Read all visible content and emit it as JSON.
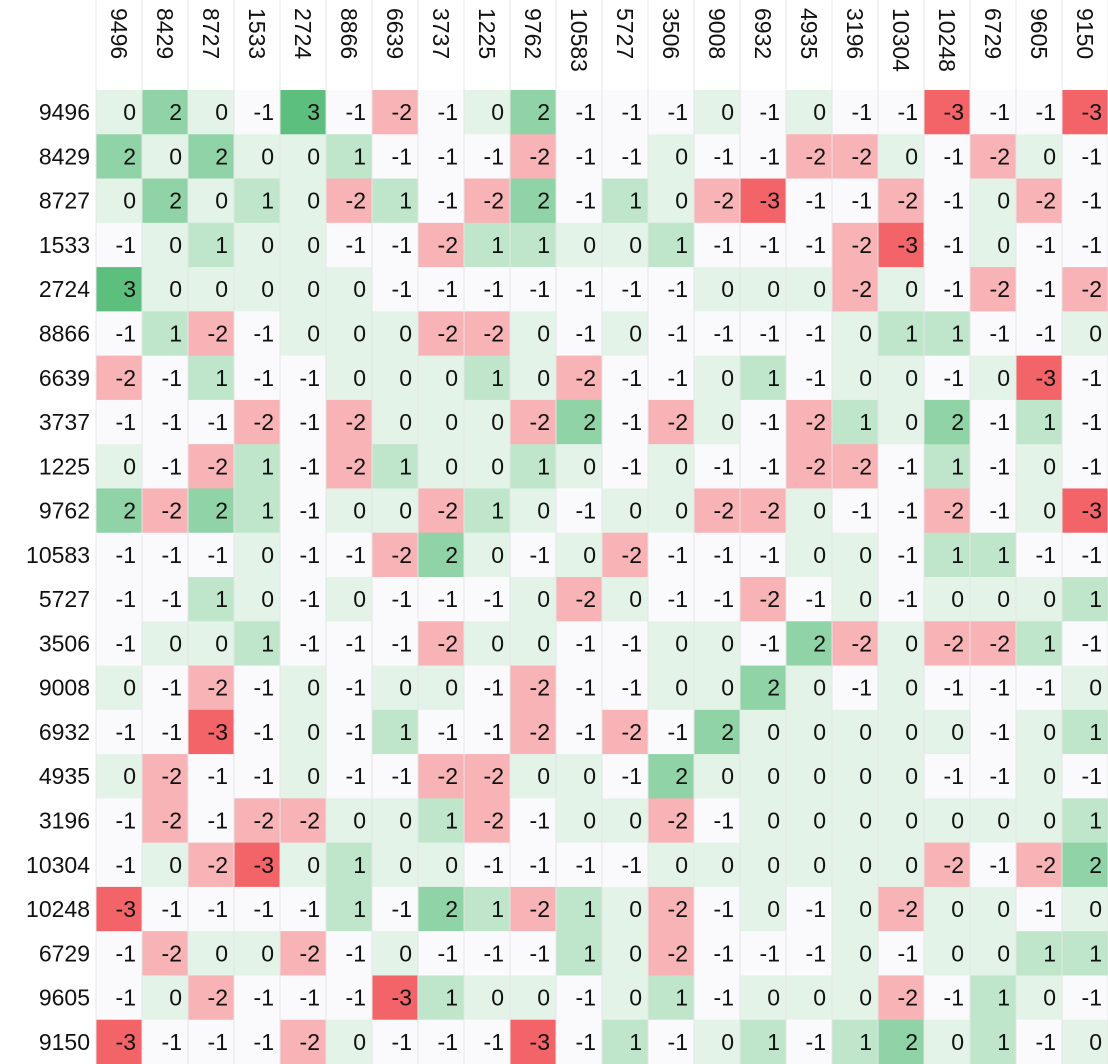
{
  "chart_data": {
    "type": "heatmap",
    "title": "",
    "xlabel": "",
    "ylabel": "",
    "labels": [
      "9496",
      "8429",
      "8727",
      "1533",
      "2724",
      "8866",
      "6639",
      "3737",
      "1225",
      "9762",
      "10583",
      "5727",
      "3506",
      "9008",
      "6932",
      "4935",
      "3196",
      "10304",
      "10248",
      "6729",
      "9605",
      "9150"
    ],
    "values": [
      [
        0,
        2,
        0,
        -1,
        3,
        -1,
        -2,
        -1,
        0,
        2,
        -1,
        -1,
        -1,
        0,
        -1,
        0,
        -1,
        -1,
        -3,
        -1,
        -1,
        -3
      ],
      [
        2,
        0,
        2,
        0,
        0,
        1,
        -1,
        -1,
        -1,
        -2,
        -1,
        -1,
        0,
        -1,
        -1,
        -2,
        -2,
        0,
        -1,
        -2,
        0,
        -1
      ],
      [
        0,
        2,
        0,
        1,
        0,
        -2,
        1,
        -1,
        -2,
        2,
        -1,
        1,
        0,
        -2,
        -3,
        -1,
        -1,
        -2,
        -1,
        0,
        -2,
        -1
      ],
      [
        -1,
        0,
        1,
        0,
        0,
        -1,
        -1,
        -2,
        1,
        1,
        0,
        0,
        1,
        -1,
        -1,
        -1,
        -2,
        -3,
        -1,
        0,
        -1,
        -1
      ],
      [
        3,
        0,
        0,
        0,
        0,
        0,
        -1,
        -1,
        -1,
        -1,
        -1,
        -1,
        -1,
        0,
        0,
        0,
        -2,
        0,
        -1,
        -2,
        -1,
        -2
      ],
      [
        -1,
        1,
        -2,
        -1,
        0,
        0,
        0,
        -2,
        -2,
        0,
        -1,
        0,
        -1,
        -1,
        -1,
        -1,
        0,
        1,
        1,
        -1,
        -1,
        0
      ],
      [
        -2,
        -1,
        1,
        -1,
        -1,
        0,
        0,
        0,
        1,
        0,
        -2,
        -1,
        -1,
        0,
        1,
        -1,
        0,
        0,
        -1,
        0,
        -3,
        -1
      ],
      [
        -1,
        -1,
        -1,
        -2,
        -1,
        -2,
        0,
        0,
        0,
        -2,
        2,
        -1,
        -2,
        0,
        -1,
        -2,
        1,
        0,
        2,
        -1,
        1,
        -1
      ],
      [
        0,
        -1,
        -2,
        1,
        -1,
        -2,
        1,
        0,
        0,
        1,
        0,
        -1,
        0,
        -1,
        -1,
        -2,
        -2,
        -1,
        1,
        -1,
        0,
        -1
      ],
      [
        2,
        -2,
        2,
        1,
        -1,
        0,
        0,
        -2,
        1,
        0,
        -1,
        0,
        0,
        -2,
        -2,
        0,
        -1,
        -1,
        -2,
        -1,
        0,
        -3
      ],
      [
        -1,
        -1,
        -1,
        0,
        -1,
        -1,
        -2,
        2,
        0,
        -1,
        0,
        -2,
        -1,
        -1,
        -1,
        0,
        0,
        -1,
        1,
        1,
        -1,
        -1
      ],
      [
        -1,
        -1,
        1,
        0,
        -1,
        0,
        -1,
        -1,
        -1,
        0,
        -2,
        0,
        -1,
        -1,
        -2,
        -1,
        0,
        -1,
        0,
        0,
        0,
        1
      ],
      [
        -1,
        0,
        0,
        1,
        -1,
        -1,
        -1,
        -2,
        0,
        0,
        -1,
        -1,
        0,
        0,
        -1,
        2,
        -2,
        0,
        -2,
        -2,
        1,
        -1
      ],
      [
        0,
        -1,
        -2,
        -1,
        0,
        -1,
        0,
        0,
        -1,
        -2,
        -1,
        -1,
        0,
        0,
        2,
        0,
        -1,
        0,
        -1,
        -1,
        -1,
        0
      ],
      [
        -1,
        -1,
        -3,
        -1,
        0,
        -1,
        1,
        -1,
        -1,
        -2,
        -1,
        -2,
        -1,
        2,
        0,
        0,
        0,
        0,
        0,
        -1,
        0,
        1
      ],
      [
        0,
        -2,
        -1,
        -1,
        0,
        -1,
        -1,
        -2,
        -2,
        0,
        0,
        -1,
        2,
        0,
        0,
        0,
        0,
        0,
        -1,
        -1,
        0,
        -1
      ],
      [
        -1,
        -2,
        -1,
        -2,
        -2,
        0,
        0,
        1,
        -2,
        -1,
        0,
        0,
        -2,
        -1,
        0,
        0,
        0,
        0,
        0,
        0,
        0,
        1
      ],
      [
        -1,
        0,
        -2,
        -3,
        0,
        1,
        0,
        0,
        -1,
        -1,
        -1,
        -1,
        0,
        0,
        0,
        0,
        0,
        0,
        -2,
        -1,
        -2,
        2
      ],
      [
        -3,
        -1,
        -1,
        -1,
        -1,
        1,
        -1,
        2,
        1,
        -2,
        1,
        0,
        -2,
        -1,
        0,
        -1,
        0,
        -2,
        0,
        0,
        -1,
        0
      ],
      [
        -1,
        -2,
        0,
        0,
        -2,
        -1,
        0,
        -1,
        -1,
        -1,
        1,
        0,
        -2,
        -1,
        -1,
        -1,
        0,
        -1,
        0,
        0,
        1,
        1
      ],
      [
        -1,
        0,
        -2,
        -1,
        -1,
        -1,
        -3,
        1,
        0,
        0,
        -1,
        0,
        1,
        -1,
        0,
        0,
        0,
        -2,
        -1,
        1,
        0,
        -1
      ],
      [
        -3,
        -1,
        -1,
        -1,
        -2,
        0,
        -1,
        -1,
        -1,
        -3,
        -1,
        1,
        -1,
        0,
        1,
        -1,
        1,
        2,
        0,
        1,
        -1,
        0
      ]
    ],
    "colors": {
      "3": "#5dbf7e",
      "2": "#8fd3a6",
      "1": "#bfe6cb",
      "0": "#e3f3e8",
      "-1": "#fafafd",
      "-2": "#f7b3b5",
      "-3": "#f26468"
    },
    "grid": true,
    "legend": "none"
  }
}
